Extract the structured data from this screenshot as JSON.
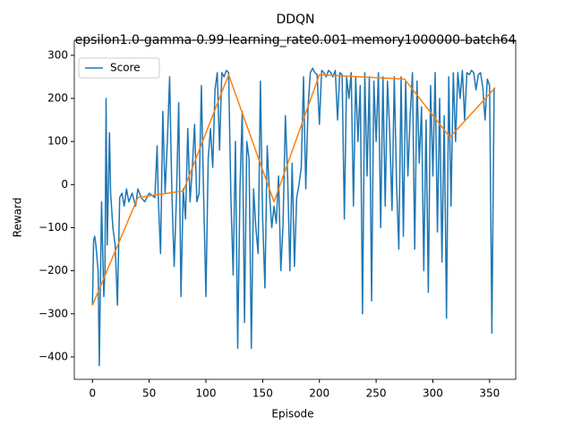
{
  "chart_data": {
    "type": "line",
    "title": "DDQN",
    "subtitle": "epsilon1.0-gamma-0.99-learning_rate0.001-memory1000000-batch64",
    "x_label": "Episode",
    "y_label": "Reward",
    "xlim": [
      -16,
      373
    ],
    "ylim": [
      -452,
      335
    ],
    "xticks": [
      0,
      50,
      100,
      150,
      200,
      250,
      300,
      350
    ],
    "yticks": [
      {
        "value": -400,
        "label": "−400"
      },
      {
        "value": -300,
        "label": "−300"
      },
      {
        "value": -200,
        "label": "−200"
      },
      {
        "value": -100,
        "label": "−100"
      },
      0,
      100,
      200,
      300
    ],
    "legend": "upper left",
    "series": [
      {
        "name": "Score",
        "color": "#1f77b4",
        "x": [
          0,
          1,
          2,
          3,
          5,
          6,
          8,
          10,
          11,
          12,
          13,
          15,
          16,
          18,
          20,
          22,
          24,
          26,
          28,
          30,
          32,
          35,
          38,
          40,
          43,
          46,
          50,
          55,
          57,
          58,
          60,
          62,
          64,
          66,
          68,
          70,
          72,
          74,
          76,
          78,
          80,
          82,
          84,
          86,
          88,
          90,
          92,
          94,
          96,
          98,
          100,
          102,
          104,
          106,
          108,
          110,
          112,
          114,
          116,
          118,
          120,
          122,
          124,
          126,
          128,
          130,
          132,
          134,
          136,
          138,
          140,
          142,
          144,
          146,
          148,
          150,
          152,
          154,
          156,
          158,
          160,
          162,
          164,
          166,
          168,
          170,
          172,
          174,
          176,
          178,
          180,
          182,
          184,
          186,
          188,
          190,
          192,
          194,
          196,
          198,
          200,
          202,
          204,
          206,
          208,
          210,
          212,
          214,
          216,
          218,
          220,
          222,
          224,
          226,
          228,
          230,
          232,
          234,
          236,
          238,
          240,
          242,
          244,
          246,
          248,
          250,
          252,
          254,
          256,
          258,
          260,
          262,
          264,
          266,
          268,
          270,
          272,
          274,
          276,
          278,
          280,
          282,
          284,
          286,
          288,
          290,
          292,
          294,
          296,
          298,
          300,
          302,
          304,
          306,
          308,
          310,
          312,
          314,
          316,
          318,
          320,
          322,
          324,
          326,
          328,
          330,
          332,
          334,
          336,
          338,
          340,
          342,
          344,
          346,
          348,
          350,
          352,
          354
        ],
        "values": [
          -280,
          -130,
          -120,
          -140,
          -200,
          -420,
          -40,
          -260,
          -200,
          200,
          -140,
          120,
          -20,
          -100,
          -140,
          -280,
          -30,
          -20,
          -50,
          -10,
          -40,
          -20,
          -50,
          -10,
          -30,
          -40,
          -20,
          -30,
          90,
          -30,
          -160,
          170,
          -20,
          100,
          250,
          -20,
          -190,
          -30,
          190,
          -260,
          -10,
          -80,
          130,
          -40,
          40,
          140,
          -40,
          -20,
          230,
          -30,
          -260,
          60,
          130,
          40,
          220,
          260,
          80,
          260,
          250,
          265,
          260,
          -30,
          -210,
          100,
          -380,
          -10,
          170,
          -320,
          100,
          60,
          -380,
          -10,
          -100,
          -160,
          240,
          -80,
          -240,
          90,
          -20,
          -100,
          -50,
          -90,
          20,
          -200,
          -90,
          160,
          20,
          -200,
          50,
          -190,
          -30,
          0,
          40,
          250,
          -10,
          180,
          260,
          270,
          260,
          255,
          140,
          265,
          260,
          250,
          265,
          260,
          250,
          265,
          150,
          260,
          255,
          -80,
          250,
          200,
          260,
          -50,
          250,
          100,
          230,
          -300,
          260,
          20,
          250,
          -270,
          240,
          100,
          260,
          -100,
          250,
          -50,
          240,
          120,
          -60,
          250,
          0,
          -150,
          250,
          -120,
          240,
          20,
          160,
          260,
          -150,
          240,
          50,
          180,
          -200,
          150,
          -250,
          230,
          20,
          260,
          -110,
          200,
          -180,
          160,
          -310,
          250,
          -50,
          260,
          100,
          260,
          200,
          265,
          150,
          260,
          255,
          265,
          260,
          220,
          255,
          260,
          225,
          150,
          245,
          230,
          -345,
          225
        ]
      },
      {
        "color": "#ff7f0e",
        "x": [
          0,
          40,
          80,
          120,
          160,
          200,
          275,
          315,
          355
        ],
        "values": [
          -280,
          -30,
          -15,
          255,
          -40,
          255,
          245,
          110,
          225
        ]
      }
    ]
  }
}
